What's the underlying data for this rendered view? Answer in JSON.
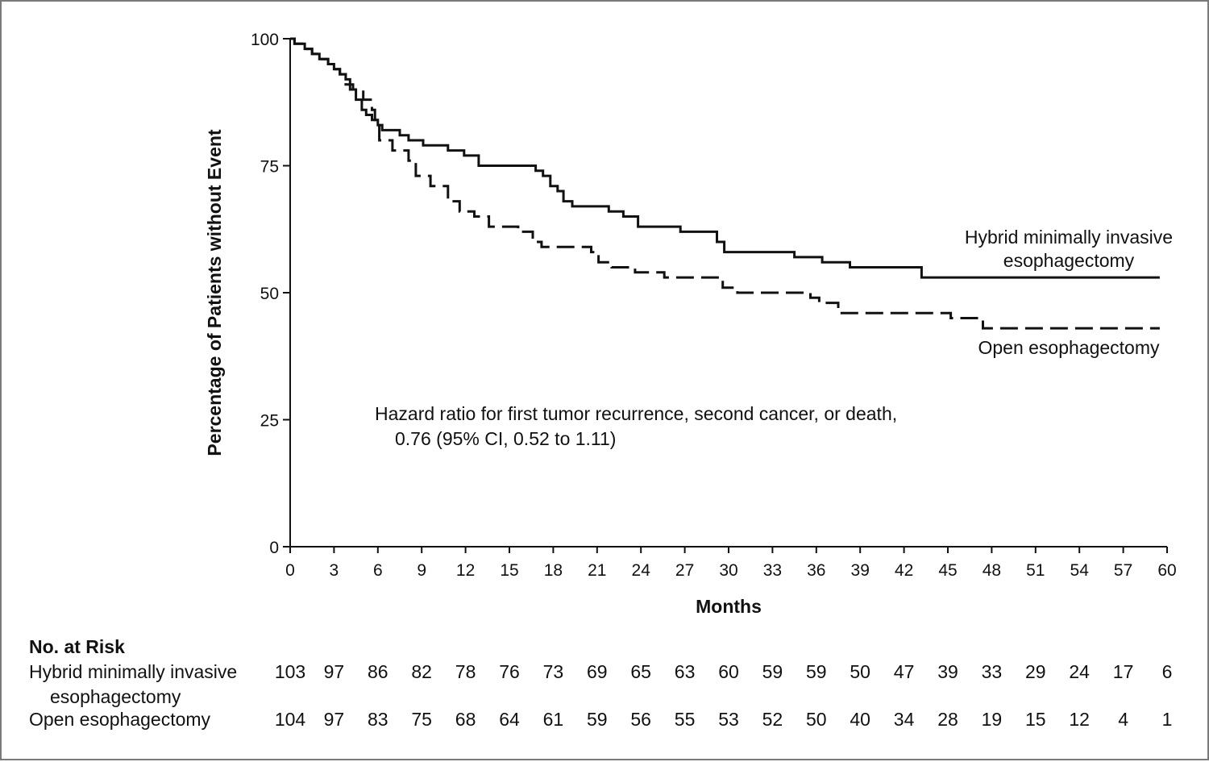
{
  "chart_data": {
    "type": "line",
    "title": "",
    "xlabel": "Months",
    "ylabel": "Percentage of Patients without Event",
    "xlim": [
      0,
      60
    ],
    "ylim": [
      0,
      100
    ],
    "x_ticks": [
      "0",
      "3",
      "6",
      "9",
      "12",
      "15",
      "18",
      "21",
      "24",
      "27",
      "30",
      "33",
      "36",
      "39",
      "42",
      "45",
      "48",
      "51",
      "54",
      "57",
      "60"
    ],
    "y_ticks": [
      "0",
      "25",
      "50",
      "75",
      "100"
    ],
    "grid": false,
    "step": true,
    "series": [
      {
        "name_lines": [
          "Hybrid minimally invasive",
          "esophagectomy"
        ],
        "style": "solid",
        "color": "#111111",
        "x": [
          0,
          0.3,
          1.0,
          1.5,
          2.0,
          2.6,
          3.0,
          3.4,
          3.8,
          4.1,
          4.5,
          4.9,
          5.2,
          5.6,
          6.0,
          6.3,
          7.5,
          8.1,
          9.1,
          10.8,
          11.9,
          12.9,
          16.8,
          17.3,
          17.8,
          18.3,
          18.7,
          19.3,
          21.8,
          22.8,
          23.8,
          26.7,
          29.2,
          29.7,
          34.5,
          36.4,
          38.3,
          43.2,
          59.5
        ],
        "y": [
          100,
          99,
          98,
          97,
          96,
          95,
          94,
          93,
          92,
          90,
          88,
          86,
          85,
          84,
          83,
          82,
          81,
          80,
          79,
          78,
          77,
          75,
          74,
          73,
          71,
          70,
          68,
          67,
          66,
          65,
          63,
          62,
          60,
          58,
          57,
          56,
          55,
          53,
          53
        ]
      },
      {
        "name_lines": [
          "Open esophagectomy"
        ],
        "style": "dashed",
        "color": "#111111",
        "x": [
          0,
          0.3,
          1.0,
          1.5,
          2.0,
          2.6,
          3.0,
          3.4,
          3.8,
          4.3,
          5.0,
          5.6,
          5.8,
          6.1,
          7.0,
          8.1,
          8.6,
          9.6,
          10.8,
          11.6,
          12.6,
          13.6,
          15.6,
          16.6,
          17.2,
          20.6,
          21.1,
          22.0,
          23.6,
          25.6,
          29.6,
          30.6,
          35.6,
          36.2,
          37.5,
          45.2,
          47.4,
          59.5
        ],
        "y": [
          100,
          99,
          98,
          97,
          96,
          95,
          94,
          93,
          91,
          90,
          88,
          86,
          84,
          80,
          78,
          76,
          73,
          71,
          68,
          66,
          65,
          63,
          62,
          60,
          59,
          58,
          56,
          55,
          54,
          53,
          51,
          50,
          49,
          48,
          46,
          45,
          43,
          43
        ]
      }
    ],
    "annotation": {
      "line1": "Hazard ratio for first tumor recurrence, second cancer, or death,",
      "line2": "0.76 (95% CI, 0.52 to 1.11)"
    },
    "risk_table": {
      "title": "No. at Risk",
      "rows": [
        {
          "label_lines": [
            "Hybrid minimally invasive",
            "esophagectomy"
          ],
          "values": [
            "103",
            "97",
            "86",
            "82",
            "78",
            "76",
            "73",
            "69",
            "65",
            "63",
            "60",
            "59",
            "59",
            "50",
            "47",
            "39",
            "33",
            "29",
            "24",
            "17",
            "6"
          ]
        },
        {
          "label_lines": [
            "Open esophagectomy"
          ],
          "values": [
            "104",
            "97",
            "83",
            "75",
            "68",
            "64",
            "61",
            "59",
            "56",
            "55",
            "53",
            "52",
            "50",
            "40",
            "34",
            "28",
            "19",
            "15",
            "12",
            "4",
            "1"
          ]
        }
      ]
    }
  }
}
